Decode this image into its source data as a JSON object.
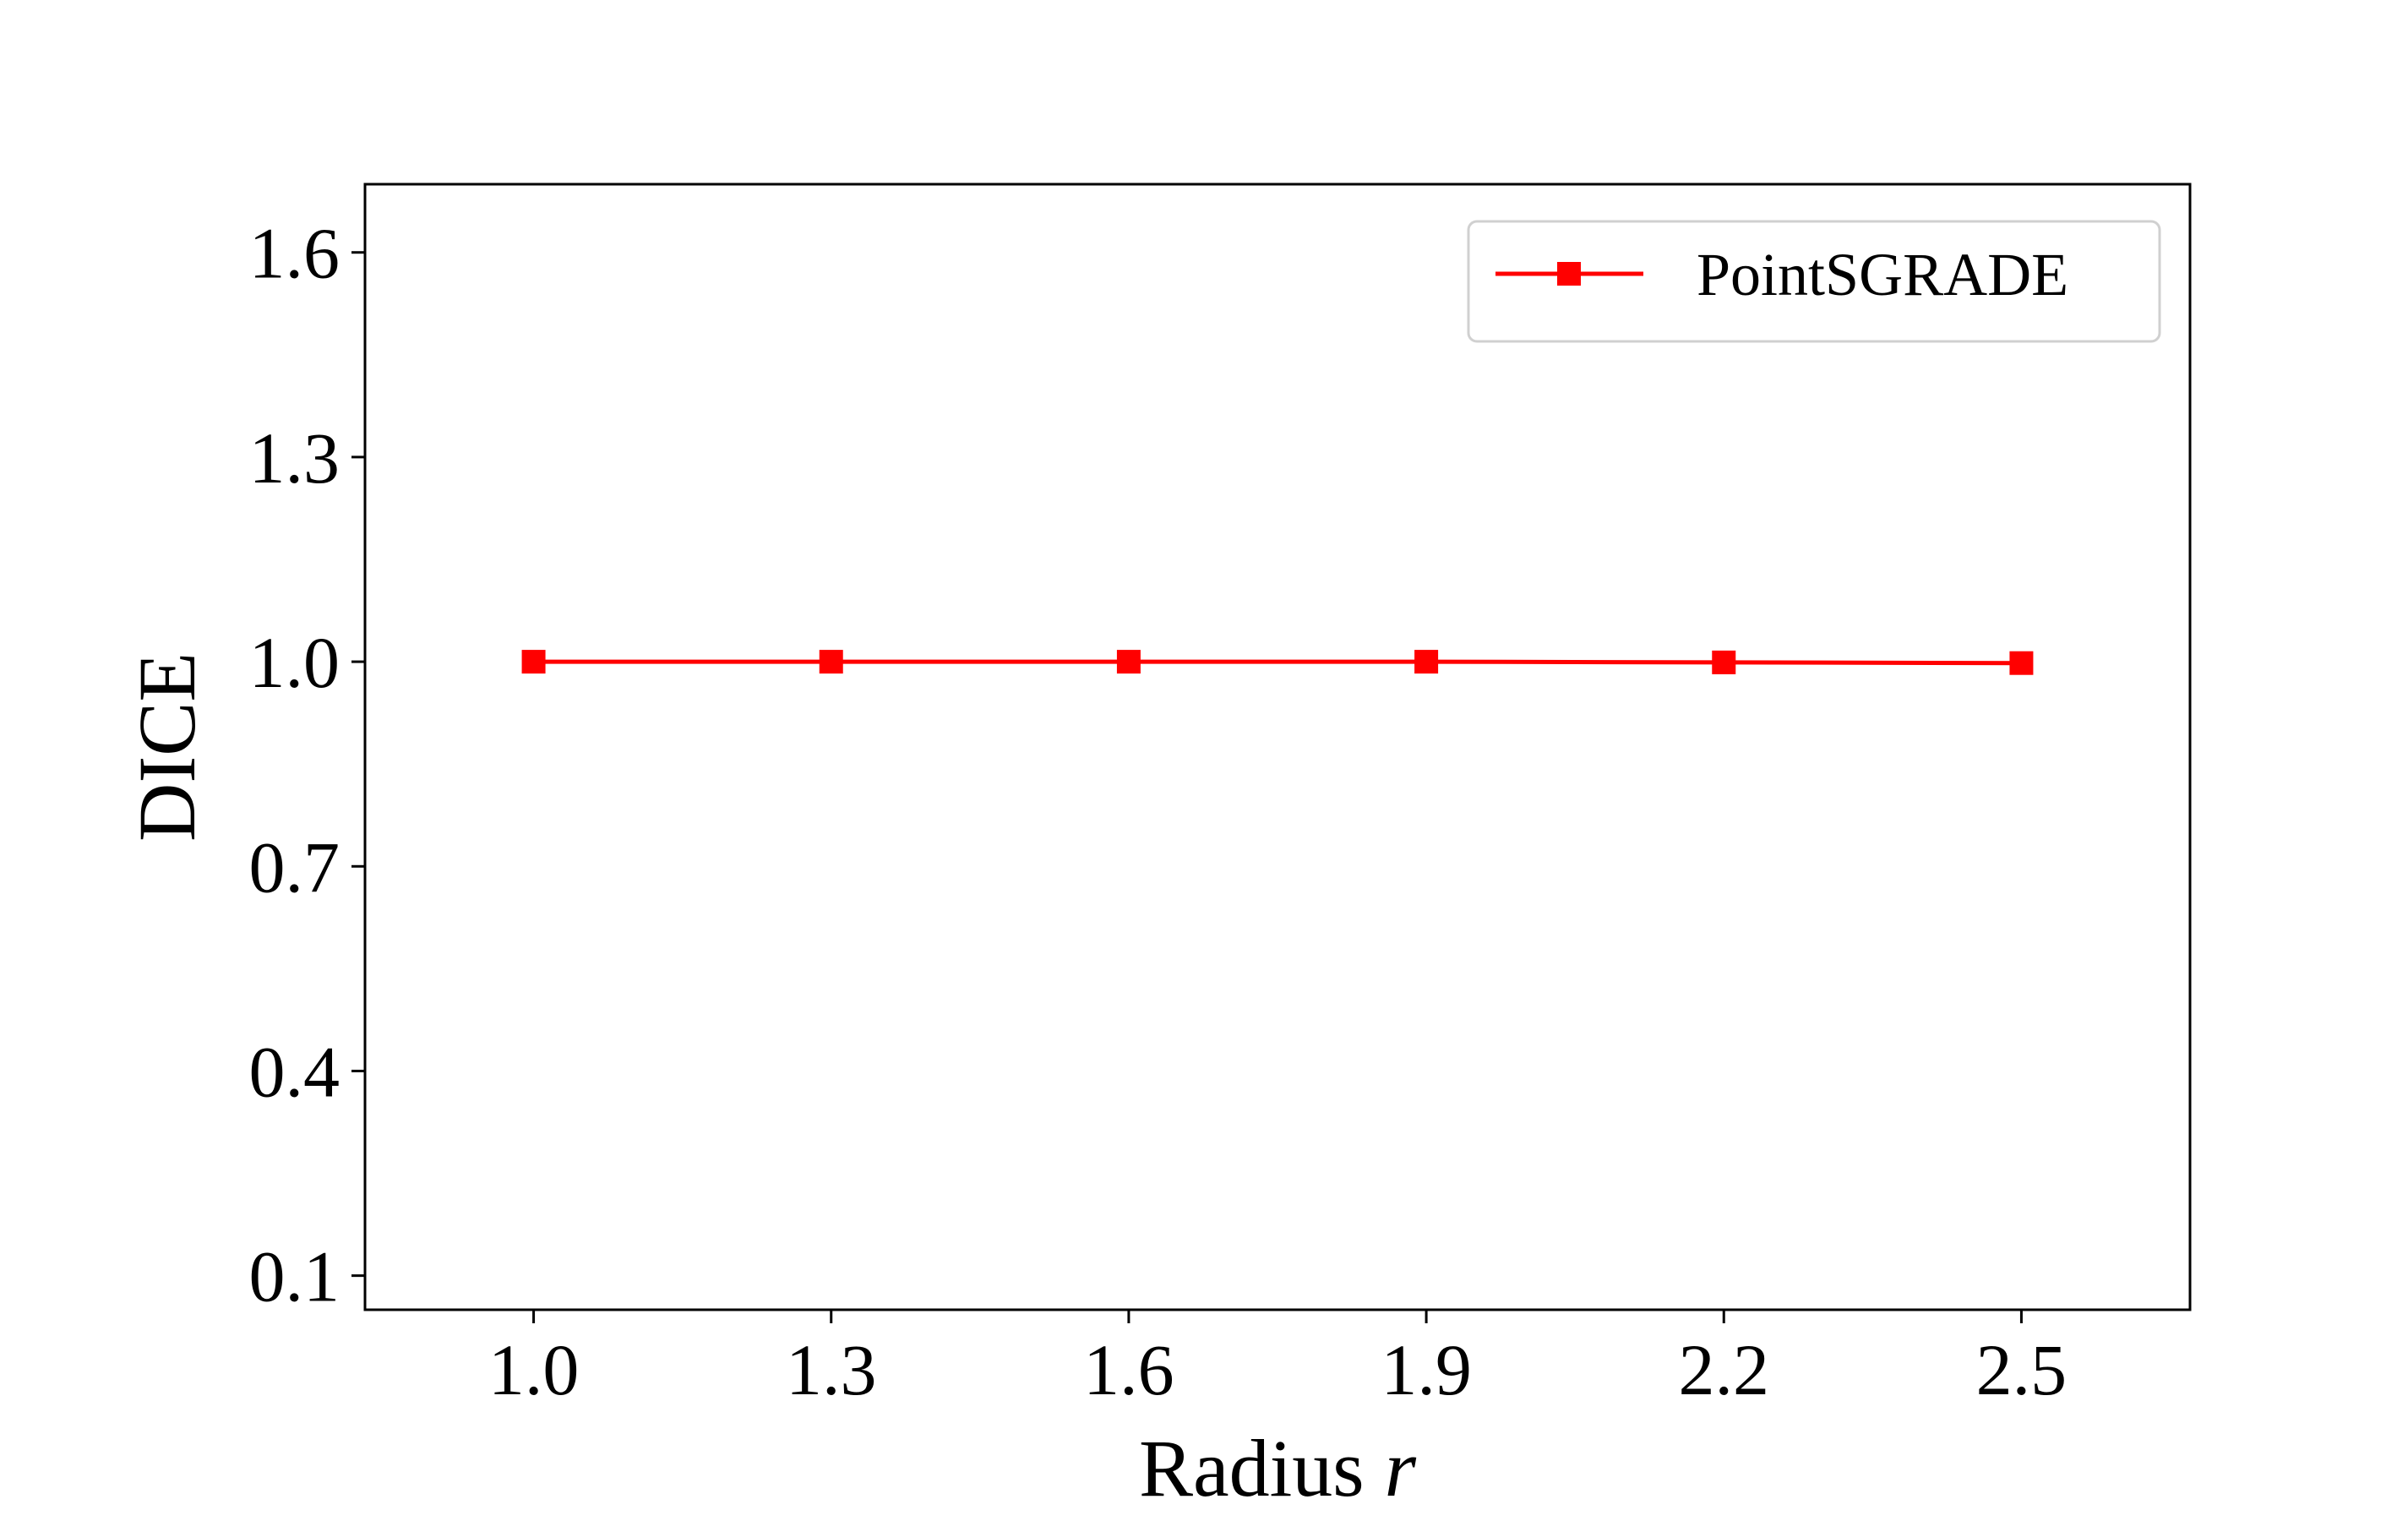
{
  "chart_data": {
    "type": "line",
    "xlabel": "Radius",
    "xlabel_var": "r",
    "ylabel": "DICE",
    "x_ticks": [
      "1.0",
      "1.3",
      "1.6",
      "1.9",
      "2.2",
      "2.5"
    ],
    "y_ticks": [
      "0.1",
      "0.4",
      "0.7",
      "1.0",
      "1.3",
      "1.6"
    ],
    "xlim": [
      0.83,
      2.67
    ],
    "ylim": [
      0.05,
      1.7
    ],
    "grid": false,
    "legend_position": "upper right",
    "series": [
      {
        "name": "PointSGRADE",
        "color": "#ff0000",
        "marker": "square",
        "x": [
          1.0,
          1.3,
          1.6,
          1.9,
          2.2,
          2.5
        ],
        "y": [
          1.0,
          1.0,
          1.0,
          1.0,
          0.999,
          0.998
        ]
      }
    ]
  }
}
